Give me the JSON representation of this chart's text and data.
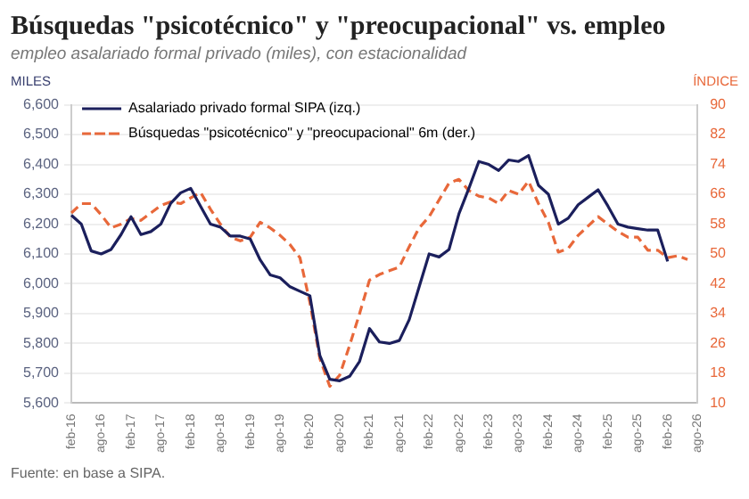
{
  "chart_data": {
    "type": "line",
    "title": "Búsquedas \"psicotécnico\" y \"preocupacional\" vs. empleo",
    "subtitle": "empleo asalariado formal privado (miles), con estacionalidad",
    "ylabel": "MILES",
    "y2label": "ÍNDICE",
    "annotations": [
      "Fuente: en base a SIPA."
    ],
    "categories": [
      "feb-16",
      null,
      null,
      "ago-16",
      null,
      null,
      "feb-17",
      null,
      null,
      "ago-17",
      null,
      null,
      "feb-18",
      null,
      null,
      "ago-18",
      null,
      null,
      "feb-19",
      null,
      null,
      "ago-19",
      null,
      null,
      "feb-20",
      null,
      null,
      "ago-20",
      null,
      null,
      "feb-21",
      null,
      null,
      "ago-21",
      null,
      null,
      "feb-22",
      null,
      null,
      "ago-22",
      null,
      null,
      "feb-23",
      null,
      null,
      "ago-23",
      null,
      null,
      "feb-24",
      null,
      null,
      "ago-24",
      null,
      null,
      "feb-25",
      null,
      null,
      "ago-25",
      null,
      null,
      "feb-26",
      null,
      null,
      "ago-26"
    ],
    "series": [
      {
        "name": "Asalariado privado formal SIPA (izq.)",
        "color": "#1b1f5c",
        "line_style": "solid",
        "values": [
          6230,
          6200,
          6110,
          6100,
          6115,
          6165,
          6225,
          6165,
          6175,
          6200,
          6270,
          6305,
          6320,
          6260,
          6200,
          6190,
          6160,
          6160,
          6150,
          6080,
          6030,
          6020,
          5990,
          5975,
          5960,
          5760,
          5680,
          5675,
          5690,
          5740,
          5850,
          5805,
          5800,
          5810,
          5880,
          5990,
          6100,
          6090,
          6115,
          6235,
          6320,
          6410,
          6400,
          6380,
          6415,
          6410,
          6430,
          6330,
          6300,
          6200,
          6220,
          6265,
          6290,
          6315,
          6260,
          6200,
          6190,
          6185,
          6180,
          6180,
          6075,
          null,
          null,
          null
        ]
      },
      {
        "name": "Búsquedas \"psicotécnico\" y \"preocupacional\" 6m (der.)",
        "color": "#e8683a",
        "line_style": "dashed",
        "axis": "y2",
        "values": [
          61,
          63.5,
          63.5,
          60.5,
          57,
          58,
          59.5,
          59,
          61,
          63,
          64,
          63.5,
          65,
          66.5,
          62,
          58,
          54.5,
          53.5,
          54.5,
          58.5,
          57,
          55,
          52.5,
          49,
          37,
          22,
          14.5,
          17.5,
          25.5,
          34,
          43,
          44.5,
          45.5,
          46.5,
          52,
          57,
          60,
          64.5,
          69,
          70,
          67,
          65.5,
          65,
          63.5,
          67,
          66,
          69.5,
          63.5,
          58.5,
          50.5,
          51.5,
          55,
          57.5,
          60,
          58,
          56,
          54.5,
          54.5,
          51,
          51,
          49,
          49.5,
          48.5,
          null
        ]
      }
    ],
    "ylim": [
      5600,
      6600
    ],
    "yticks": [
      {
        "value": 5600,
        "label": "5,600"
      },
      {
        "value": 5700,
        "label": "5,700"
      },
      {
        "value": 5800,
        "label": "5,800"
      },
      {
        "value": 5900,
        "label": "5,900"
      },
      {
        "value": 6000,
        "label": "6,000"
      },
      {
        "value": 6100,
        "label": "6,100"
      },
      {
        "value": 6200,
        "label": "6,200"
      },
      {
        "value": 6300,
        "label": "6,300"
      },
      {
        "value": 6400,
        "label": "6,400"
      },
      {
        "value": 6500,
        "label": "6,500"
      },
      {
        "value": 6600,
        "label": "6,600"
      }
    ],
    "y2lim": [
      10,
      90
    ],
    "y2ticks": [
      10,
      18,
      26,
      34,
      42,
      50,
      58,
      66,
      74,
      82,
      90
    ],
    "grid": "y",
    "legend": "top left",
    "marker": "none"
  }
}
